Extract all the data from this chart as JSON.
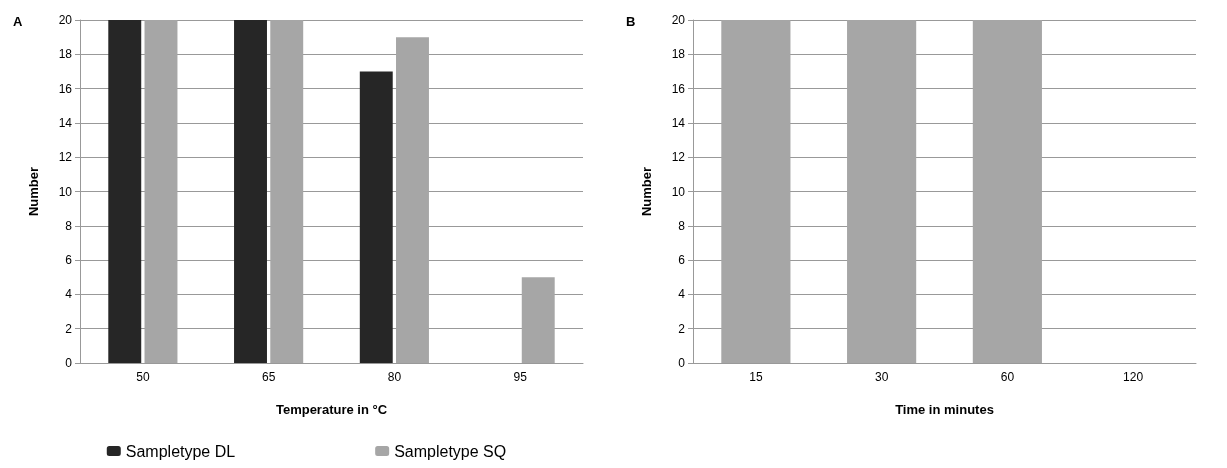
{
  "chart_data": [
    {
      "type": "bar",
      "title": "A",
      "categories": [
        "50",
        "65",
        "80",
        "95"
      ],
      "xlabel": "Temperature in °C",
      "ylabel": "Number",
      "ylim": [
        0,
        20
      ],
      "yticks": [
        0,
        2,
        4,
        6,
        8,
        10,
        12,
        14,
        16,
        18,
        20
      ],
      "grid": "y",
      "legend": "bottom",
      "series": [
        {
          "name": "Sampletype DL",
          "color": "#262626",
          "values": [
            20,
            20,
            17,
            0
          ]
        },
        {
          "name": "Sampletype SQ",
          "color": "#a6a6a6",
          "values": [
            20,
            20,
            19,
            5
          ]
        }
      ]
    },
    {
      "type": "bar",
      "title": "B",
      "categories": [
        "15",
        "30",
        "60",
        "120"
      ],
      "xlabel": "Time in minutes",
      "ylabel": "Number",
      "ylim": [
        0,
        20
      ],
      "yticks": [
        0,
        2,
        4,
        6,
        8,
        10,
        12,
        14,
        16,
        18,
        20
      ],
      "grid": "y",
      "series": [
        {
          "color": "#a6a6a6",
          "values": [
            20,
            20,
            20,
            0
          ]
        }
      ]
    }
  ]
}
